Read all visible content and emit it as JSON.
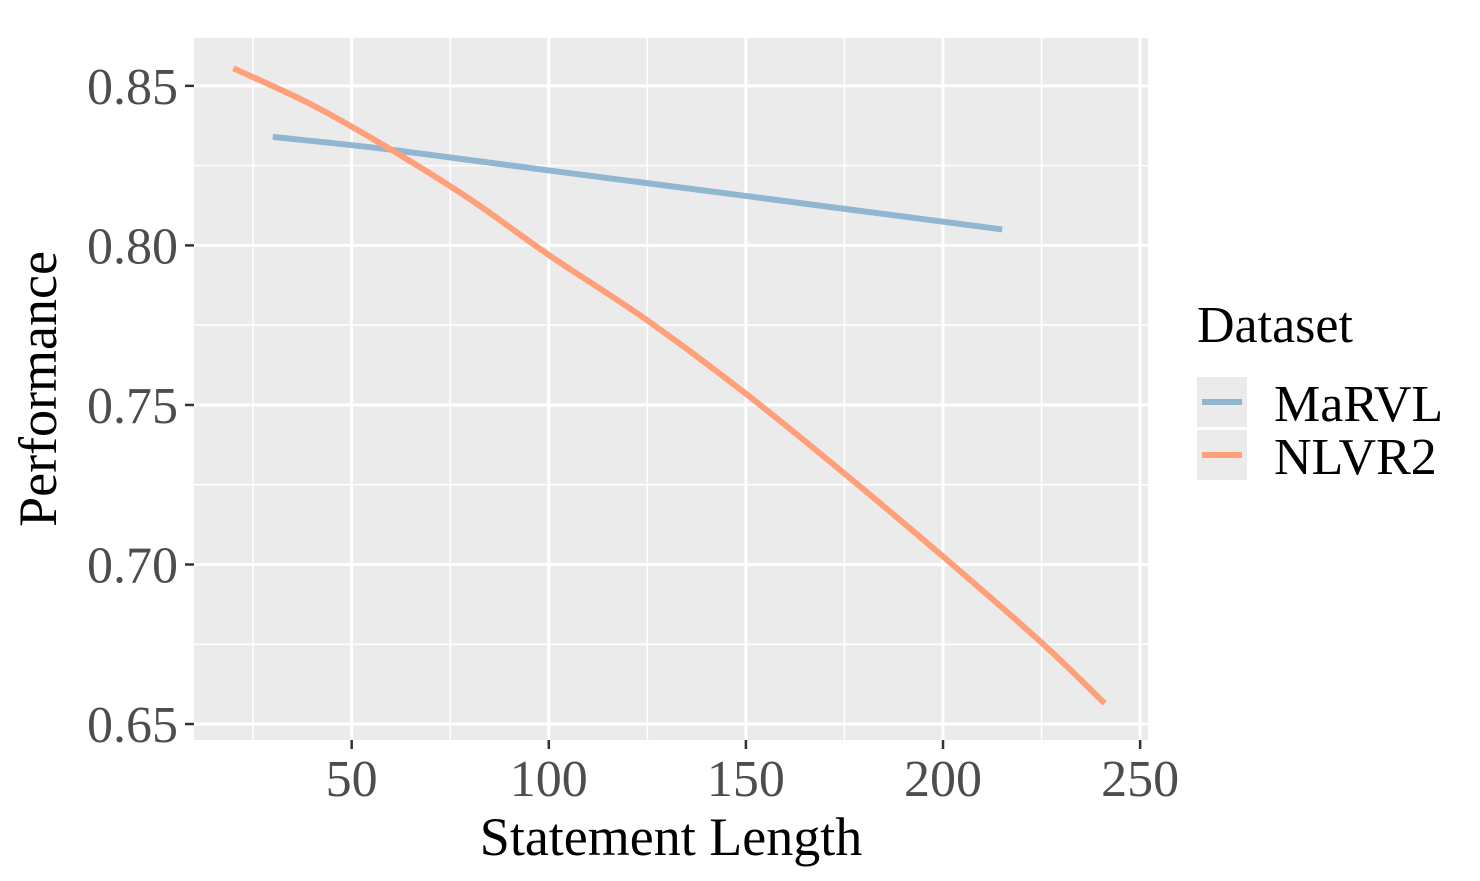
{
  "chart_data": {
    "type": "line",
    "xlabel": "Statement Length",
    "ylabel": "Performance",
    "xlim": [
      10,
      252
    ],
    "ylim": [
      0.645,
      0.865
    ],
    "x_ticks": [
      50,
      100,
      150,
      200,
      250
    ],
    "x_tick_labels": [
      "50",
      "100",
      "150",
      "200",
      "250"
    ],
    "y_ticks": [
      0.65,
      0.7,
      0.75,
      0.8,
      0.85
    ],
    "y_tick_labels": [
      "0.65",
      "0.70",
      "0.75",
      "0.80",
      "0.85"
    ],
    "grid": true,
    "legend": {
      "title": "Dataset",
      "position": "right"
    },
    "series": [
      {
        "name": "MaRVL",
        "color": "#91B6CF",
        "x": [
          30,
          60,
          100,
          150,
          215
        ],
        "y": [
          0.834,
          0.83,
          0.8235,
          0.8155,
          0.805
        ]
      },
      {
        "name": "NLVR2",
        "color": "#FFA07A",
        "x": [
          20,
          40,
          60,
          80,
          100,
          125,
          150,
          175,
          200,
          225,
          241
        ],
        "y": [
          0.8555,
          0.844,
          0.83,
          0.8145,
          0.797,
          0.7765,
          0.7535,
          0.7285,
          0.7025,
          0.6755,
          0.6565
        ]
      }
    ]
  }
}
